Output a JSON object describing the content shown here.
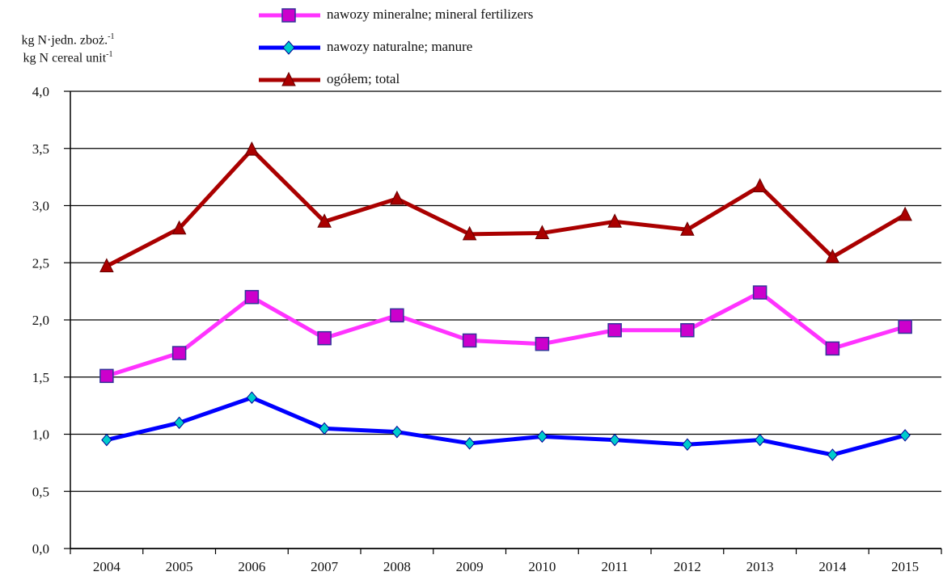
{
  "chart_data": {
    "type": "line",
    "categories": [
      "2004",
      "2005",
      "2006",
      "2007",
      "2008",
      "2009",
      "2010",
      "2011",
      "2012",
      "2013",
      "2014",
      "2015"
    ],
    "ylabel_line1": "kg N·jedn. zboż.",
    "ylabel_line1_sup": "-1",
    "ylabel_line2": "kg N cereal unit",
    "ylabel_line2_sup": "-1",
    "ylim": [
      0,
      4
    ],
    "yticks": [
      "0,0",
      "0,5",
      "1,0",
      "1,5",
      "2,0",
      "2,5",
      "3,0",
      "3,5",
      "4,0"
    ],
    "ytick_values": [
      0,
      0.5,
      1.0,
      1.5,
      2.0,
      2.5,
      3.0,
      3.5,
      4.0
    ],
    "grid": true,
    "legend_position": "top-center",
    "series": [
      {
        "name": "nawozy mineralne; mineral fertilizers",
        "color": "#ff33ff",
        "marker": "square",
        "marker_color": "#cc00cc",
        "values": [
          1.51,
          1.71,
          2.2,
          1.84,
          2.04,
          1.82,
          1.79,
          1.91,
          1.91,
          2.24,
          1.75,
          1.94
        ]
      },
      {
        "name": "nawozy naturalne; manure",
        "color": "#0000ff",
        "marker": "diamond",
        "marker_color": "#00cccc",
        "values": [
          0.95,
          1.1,
          1.32,
          1.05,
          1.02,
          0.92,
          0.98,
          0.95,
          0.91,
          0.95,
          0.82,
          0.99
        ]
      },
      {
        "name": "ogółem; total",
        "color": "#aa0000",
        "marker": "triangle",
        "marker_color": "#aa0000",
        "values": [
          2.47,
          2.8,
          3.49,
          2.86,
          3.06,
          2.75,
          2.76,
          2.86,
          2.79,
          3.17,
          2.55,
          2.92
        ]
      }
    ]
  }
}
